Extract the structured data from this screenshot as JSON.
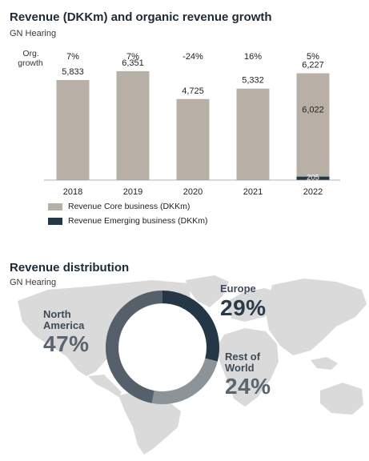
{
  "revenue_section": {
    "title": "Revenue (DKKm) and organic revenue growth",
    "subtitle": "GN Hearing",
    "growth_label": "Org. growth"
  },
  "distribution_section": {
    "title": "Revenue distribution",
    "subtitle": "GN Hearing"
  },
  "colors": {
    "core": "#b8b0a6",
    "emerging": "#253746",
    "title": "#1e2a36",
    "map": "#dadada",
    "donut_europe": "#253746",
    "donut_rest": "#8c9399",
    "donut_na": "#55606b"
  },
  "chart_data": [
    {
      "type": "bar",
      "title": "Revenue (DKKm) and organic revenue growth",
      "categories": [
        "2018",
        "2019",
        "2020",
        "2021",
        "2022"
      ],
      "growth_labels": [
        "7%",
        "7%",
        "-24%",
        "16%",
        "5%"
      ],
      "total_labels": [
        "5,833",
        "6,351",
        "4,725",
        "5,332",
        "6,227"
      ],
      "series": [
        {
          "name": "Revenue Core business (DKKm)",
          "values": [
            5833,
            6351,
            4725,
            5332,
            6022
          ],
          "color": "#b8b0a6"
        },
        {
          "name": "Revenue Emerging business (DKKm)",
          "values": [
            0,
            0,
            0,
            0,
            205
          ],
          "color": "#253746"
        }
      ],
      "segment_labels": {
        "4": {
          "core": "6,022",
          "emerging": "205"
        }
      },
      "ylim": [
        0,
        7000
      ],
      "legend_placement": "bottom-left",
      "grid": false
    },
    {
      "type": "pie",
      "title": "Revenue distribution",
      "labels": [
        "Europe",
        "Rest of World",
        "North America"
      ],
      "values": [
        29,
        24,
        47
      ],
      "display": [
        "29%",
        "24%",
        "47%"
      ],
      "colors": [
        "#253746",
        "#8c9399",
        "#55606b"
      ],
      "donut": true
    }
  ]
}
